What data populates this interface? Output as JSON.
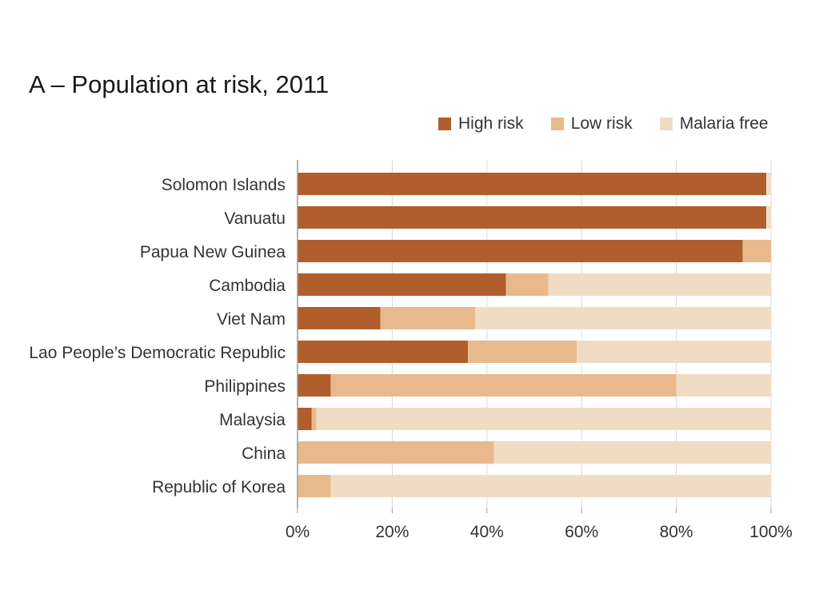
{
  "chart_data": {
    "type": "bar",
    "orientation": "horizontal",
    "stacked": true,
    "title": "A – Population at risk, 2011",
    "categories": [
      "Solomon Islands",
      "Vanuatu",
      "Papua New Guinea",
      "Cambodia",
      "Viet Nam",
      "Lao People’s Democratic Republic",
      "Philippines",
      "Malaysia",
      "China",
      "Republic of Korea"
    ],
    "series": [
      {
        "name": "High risk",
        "color": "#b05e2b",
        "values": [
          99,
          99,
          94,
          44,
          17.5,
          36,
          7,
          3,
          0,
          0
        ]
      },
      {
        "name": "Low risk",
        "color": "#e8b98c",
        "values": [
          0,
          0,
          6,
          9,
          20,
          23,
          73,
          1,
          41.5,
          7
        ]
      },
      {
        "name": "Malaria free",
        "color": "#f0dcc4",
        "values": [
          1,
          1,
          0,
          47,
          62.5,
          41,
          20,
          96,
          58.5,
          93
        ]
      }
    ],
    "xaxis": {
      "ticks": [
        "0%",
        "20%",
        "40%",
        "60%",
        "80%",
        "100%"
      ],
      "range": [
        0,
        100
      ],
      "unit": "%"
    },
    "grid": "vertical",
    "legend_position": "top-right"
  }
}
